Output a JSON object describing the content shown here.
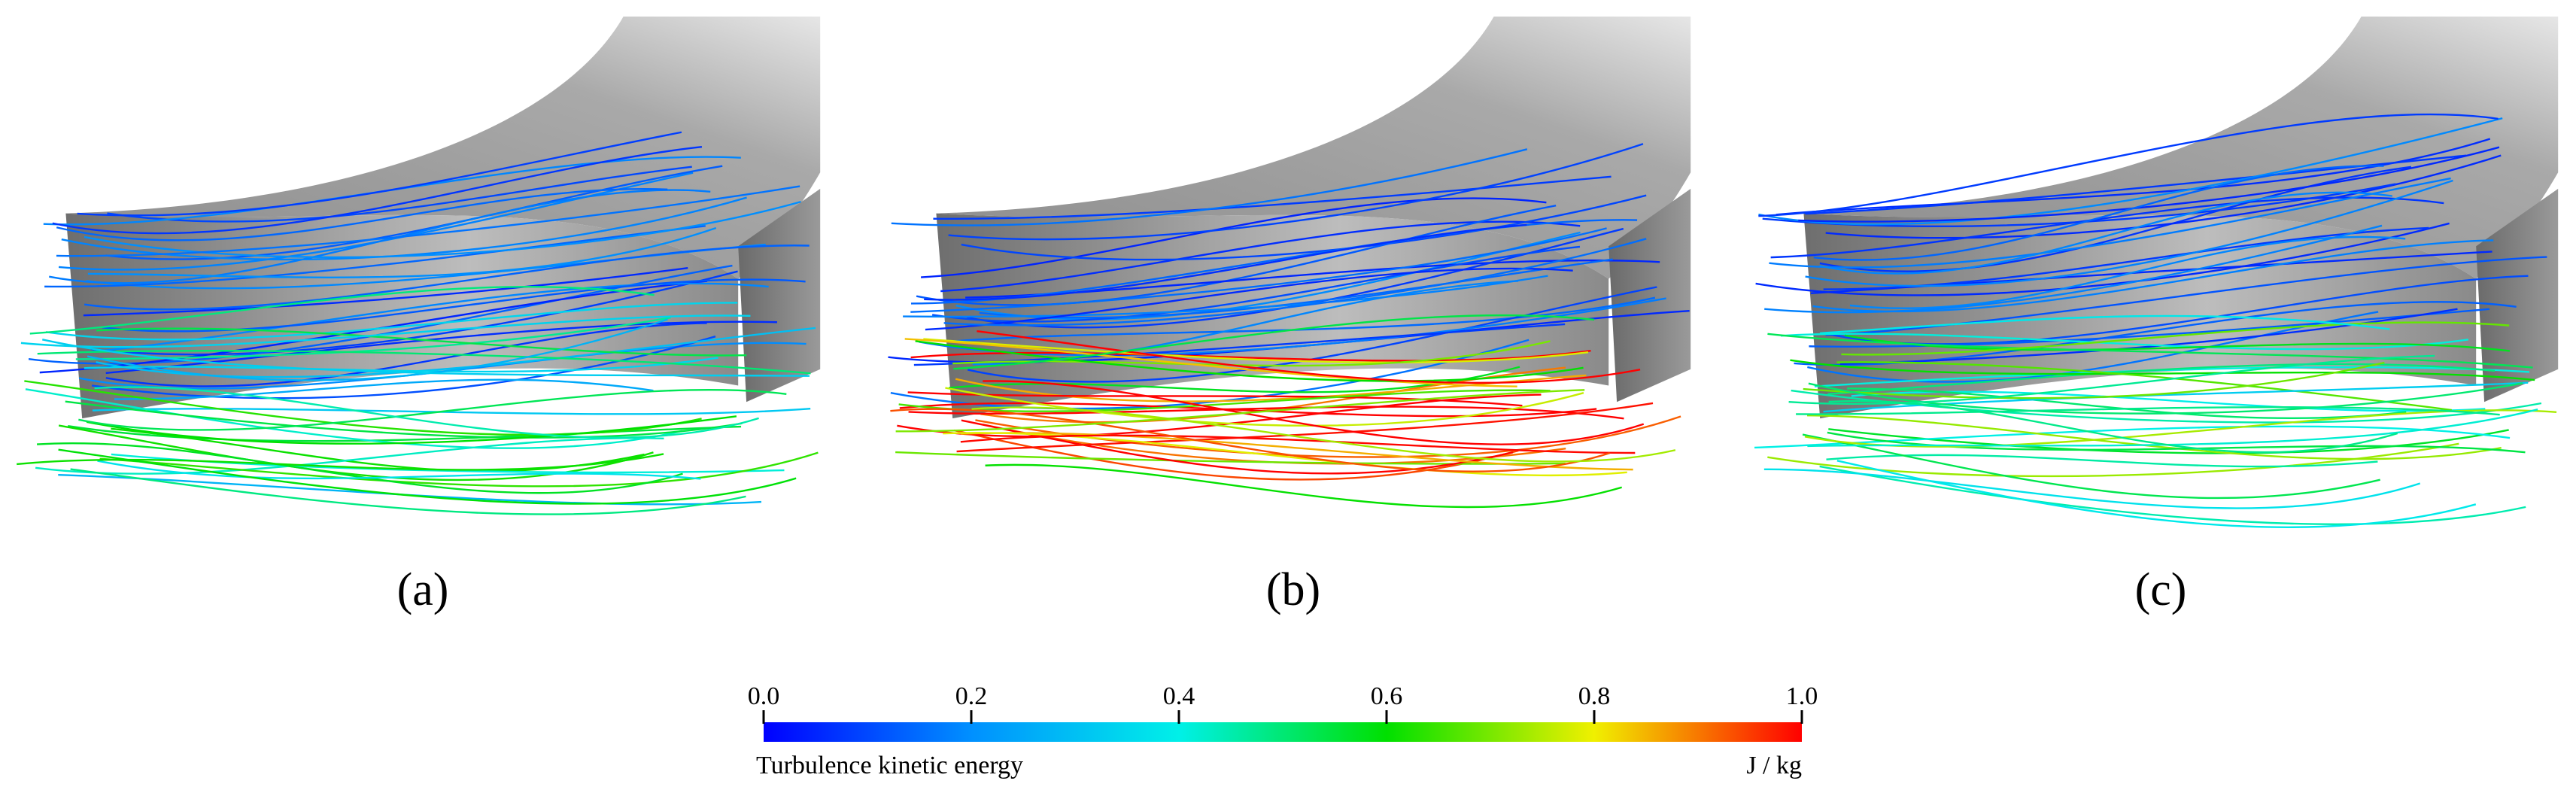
{
  "panels": [
    {
      "label": "(a)"
    },
    {
      "label": "(b)"
    },
    {
      "label": "(c)"
    }
  ],
  "colorbar": {
    "title": "Turbulence kinetic energy",
    "unit": "J / kg",
    "lim": [
      0,
      1
    ],
    "ticks": [
      {
        "value": 0,
        "label": "0.0"
      },
      {
        "value": 0.2,
        "label": "0.2"
      },
      {
        "value": 0.4,
        "label": "0.4"
      },
      {
        "value": 0.6,
        "label": "0.6"
      },
      {
        "value": 0.8,
        "label": "0.8"
      },
      {
        "value": 1,
        "label": "1.0"
      }
    ]
  }
}
